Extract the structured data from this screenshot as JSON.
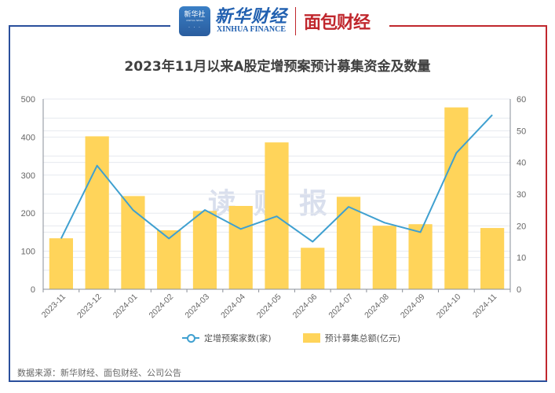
{
  "header": {
    "logo_xinhua_badge": "新华社",
    "logo_xinhua_badge_sub": "XINHUA NEWS",
    "logo_xinhua_cn": "新华财经",
    "logo_xinhua_en": "XINHUA FINANCE",
    "logo_mianbao": "面包财经"
  },
  "watermark": "读财报",
  "legend": {
    "line_label": "定增预案家数(家)",
    "bar_label": "预计募集总额(亿元)"
  },
  "source": "数据来源：新华财经、面包财经、公司公告",
  "colors": {
    "bar": "#ffd45a",
    "line": "#3fa0d0",
    "frame_left": "#2a4f9c",
    "frame_right": "#c0272d"
  },
  "chart_data": {
    "type": "bar",
    "title": "2023年11月以来A股定增预案预计募集资金及数量",
    "categories": [
      "2023-11",
      "2023-12",
      "2024-01",
      "2024-02",
      "2024-03",
      "2024-04",
      "2024-05",
      "2024-06",
      "2024-07",
      "2024-08",
      "2024-09",
      "2024-10",
      "2024-11"
    ],
    "series": [
      {
        "name": "预计募集总额(亿元)",
        "type": "bar",
        "axis": "left",
        "values": [
          134,
          402,
          245,
          155,
          206,
          219,
          386,
          109,
          243,
          167,
          171,
          478,
          161
        ]
      },
      {
        "name": "定增预案家数(家)",
        "type": "line",
        "axis": "right",
        "values": [
          16,
          39,
          25,
          16,
          25,
          19,
          23,
          15,
          26,
          21,
          18,
          43,
          55
        ]
      }
    ],
    "xlabel": "",
    "ylabel": "",
    "ylim": [
      0,
      500
    ],
    "y_ticks": [
      0,
      100,
      200,
      300,
      400,
      500
    ],
    "y2lim": [
      0,
      60
    ],
    "y2_ticks": [
      0,
      10,
      20,
      30,
      40,
      50,
      60
    ],
    "grid": true,
    "legend_position": "bottom"
  }
}
